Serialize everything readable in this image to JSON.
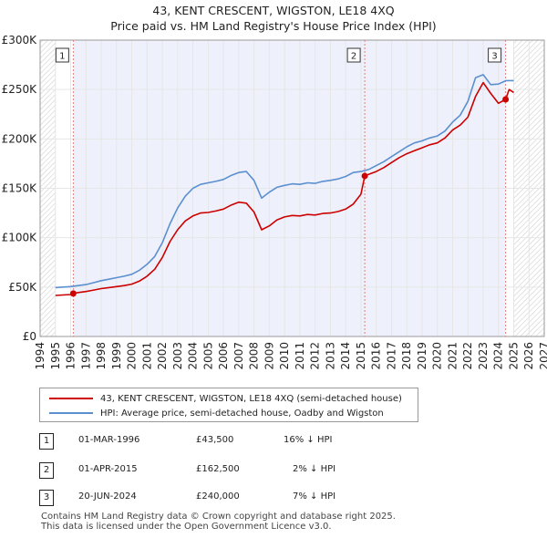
{
  "title_line1": "43, KENT CRESCENT, WIGSTON, LE18 4XQ",
  "title_line2": "Price paid vs. HM Land Registry's House Price Index (HPI)",
  "chart_data": {
    "type": "line",
    "title": "43, KENT CRESCENT, WIGSTON, LE18 4XQ — Price paid vs. HM Land Registry's House Price Index (HPI)",
    "xlim": [
      1994,
      2027
    ],
    "ylim": [
      0,
      300000
    ],
    "xticks": [
      1994,
      1995,
      1996,
      1997,
      1998,
      1999,
      2000,
      2001,
      2002,
      2003,
      2004,
      2005,
      2006,
      2007,
      2008,
      2009,
      2010,
      2011,
      2012,
      2013,
      2014,
      2015,
      2016,
      2017,
      2018,
      2019,
      2020,
      2021,
      2022,
      2023,
      2024,
      2025,
      2026,
      2027
    ],
    "yticks": [
      {
        "value": 0,
        "label": "£0"
      },
      {
        "value": 50000,
        "label": "£50K"
      },
      {
        "value": 100000,
        "label": "£100K"
      },
      {
        "value": 150000,
        "label": "£150K"
      },
      {
        "value": 200000,
        "label": "£200K"
      },
      {
        "value": 250000,
        "label": "£250K"
      },
      {
        "value": 300000,
        "label": "£300K"
      }
    ],
    "data_start": 1995.0,
    "data_end": 2025.0,
    "colors": {
      "property": "#cc0000",
      "hpi": "#5b8fd0",
      "ownership_shade": "#eef1fb",
      "marker_line": "#e08080"
    },
    "series": [
      {
        "name": "43, KENT CRESCENT, WIGSTON, LE18 4XQ (semi-detached house)",
        "key": "property",
        "x": [
          1995.0,
          1995.5,
          1996.0,
          1996.17,
          1996.5,
          1997.0,
          1997.5,
          1998.0,
          1998.5,
          1999.0,
          1999.5,
          2000.0,
          2000.5,
          2001.0,
          2001.5,
          2002.0,
          2002.5,
          2003.0,
          2003.5,
          2004.0,
          2004.5,
          2005.0,
          2005.5,
          2006.0,
          2006.5,
          2007.0,
          2007.5,
          2008.0,
          2008.5,
          2009.0,
          2009.5,
          2010.0,
          2010.5,
          2011.0,
          2011.5,
          2012.0,
          2012.5,
          2013.0,
          2013.5,
          2014.0,
          2014.5,
          2015.0,
          2015.25,
          2015.5,
          2016.0,
          2016.5,
          2017.0,
          2017.5,
          2018.0,
          2018.5,
          2019.0,
          2019.5,
          2020.0,
          2020.5,
          2021.0,
          2021.5,
          2022.0,
          2022.5,
          2023.0,
          2023.5,
          2024.0,
          2024.47,
          2024.7,
          2025.0
        ],
        "y": [
          41500,
          42000,
          42500,
          43500,
          44500,
          45500,
          47000,
          48500,
          49500,
          50500,
          51500,
          53000,
          56000,
          61000,
          68000,
          80000,
          96000,
          108000,
          117000,
          122000,
          125000,
          125500,
          127000,
          129000,
          133000,
          136000,
          135000,
          126000,
          108000,
          112000,
          118000,
          121000,
          122500,
          122000,
          123500,
          123000,
          124500,
          125000,
          126500,
          129000,
          134000,
          144000,
          162500,
          164000,
          167000,
          171000,
          176000,
          181000,
          185000,
          188000,
          191000,
          194000,
          196000,
          201000,
          209000,
          214000,
          222000,
          243000,
          257000,
          246000,
          236000,
          240000,
          250000,
          247000
        ]
      },
      {
        "name": "HPI: Average price, semi-detached house, Oadby and Wigston",
        "key": "hpi",
        "x": [
          1995.0,
          1995.5,
          1996.0,
          1996.5,
          1997.0,
          1997.5,
          1998.0,
          1998.5,
          1999.0,
          1999.5,
          2000.0,
          2000.5,
          2001.0,
          2001.5,
          2002.0,
          2002.5,
          2003.0,
          2003.5,
          2004.0,
          2004.5,
          2005.0,
          2005.5,
          2006.0,
          2006.5,
          2007.0,
          2007.5,
          2008.0,
          2008.5,
          2009.0,
          2009.5,
          2010.0,
          2010.5,
          2011.0,
          2011.5,
          2012.0,
          2012.5,
          2013.0,
          2013.5,
          2014.0,
          2014.5,
          2015.0,
          2015.5,
          2016.0,
          2016.5,
          2017.0,
          2017.5,
          2018.0,
          2018.5,
          2019.0,
          2019.5,
          2020.0,
          2020.5,
          2021.0,
          2021.5,
          2022.0,
          2022.5,
          2023.0,
          2023.5,
          2024.0,
          2024.5,
          2025.0
        ],
        "y": [
          49500,
          50000,
          50500,
          51500,
          52500,
          54500,
          56500,
          58000,
          59500,
          61000,
          63000,
          67000,
          73000,
          81000,
          95000,
          114000,
          130000,
          142000,
          150000,
          154000,
          155500,
          157000,
          159000,
          163000,
          166000,
          167000,
          158000,
          140000,
          146000,
          151000,
          153000,
          154500,
          154000,
          155500,
          155000,
          157000,
          158000,
          159500,
          162000,
          166000,
          167000,
          169000,
          173000,
          177000,
          182000,
          187000,
          192000,
          196000,
          198000,
          201000,
          203000,
          208000,
          217000,
          224000,
          238000,
          262000,
          265000,
          255000,
          255500,
          259000,
          259000
        ]
      }
    ],
    "transactions": [
      {
        "label": "1",
        "x": 1996.17,
        "y": 43500
      },
      {
        "label": "2",
        "x": 2015.25,
        "y": 162500
      },
      {
        "label": "3",
        "x": 2024.47,
        "y": 240000
      }
    ]
  },
  "legend": {
    "property": "43, KENT CRESCENT, WIGSTON, LE18 4XQ (semi-detached house)",
    "hpi": "HPI: Average price, semi-detached house, Oadby and Wigston"
  },
  "sales": [
    {
      "num": "1",
      "date": "01-MAR-1996",
      "price": "£43,500",
      "hpi": "16% ↓ HPI"
    },
    {
      "num": "2",
      "date": "01-APR-2015",
      "price": "£162,500",
      "hpi": "2% ↓ HPI"
    },
    {
      "num": "3",
      "date": "20-JUN-2024",
      "price": "£240,000",
      "hpi": "7% ↓ HPI"
    }
  ],
  "footer_line1": "Contains HM Land Registry data © Crown copyright and database right 2025.",
  "footer_line2": "This data is licensed under the Open Government Licence v3.0."
}
